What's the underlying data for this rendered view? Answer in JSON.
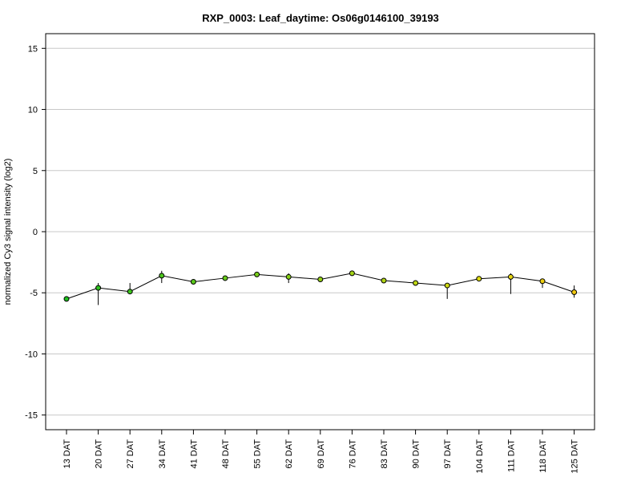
{
  "chart_data": {
    "type": "line",
    "title": "RXP_0003: Leaf_daytime: Os06g0146100_39193",
    "xlabel": "",
    "ylabel": "normalized Cy3 signal intensity (log2)",
    "ylim": [
      -16.2,
      16.2
    ],
    "yticks": [
      15,
      10,
      5,
      0,
      -5,
      -10,
      -15
    ],
    "grid": true,
    "categories": [
      "13 DAT",
      "20 DAT",
      "27 DAT",
      "34 DAT",
      "41 DAT",
      "48 DAT",
      "55 DAT",
      "62 DAT",
      "69 DAT",
      "76 DAT",
      "83 DAT",
      "90 DAT",
      "97 DAT",
      "104 DAT",
      "111 DAT",
      "118 DAT",
      "125 DAT"
    ],
    "values": [
      -5.5,
      -4.6,
      -4.9,
      -3.6,
      -4.1,
      -3.8,
      -3.5,
      -3.7,
      -3.9,
      -3.4,
      -4.0,
      -4.2,
      -4.4,
      -3.85,
      -3.7,
      -4.05,
      -4.95
    ],
    "error_low": [
      -5.6,
      -6.0,
      -5.0,
      -4.2,
      -4.2,
      -3.9,
      -3.6,
      -4.2,
      -4.0,
      -3.5,
      -4.1,
      -4.3,
      -5.5,
      -3.95,
      -5.1,
      -4.6,
      -5.4
    ],
    "error_high": [
      -5.4,
      -4.2,
      -4.2,
      -3.2,
      -4.0,
      -3.7,
      -3.4,
      -3.4,
      -3.8,
      -3.3,
      -3.9,
      -4.1,
      -4.3,
      -3.75,
      -3.4,
      -3.9,
      -4.4
    ],
    "point_colors": [
      "#1fc01f",
      "#2ec21e",
      "#3cc41d",
      "#4bc71c",
      "#5ac91b",
      "#68cb1a",
      "#77cd19",
      "#85cf18",
      "#94d117",
      "#a3d316",
      "#b1d515",
      "#c0d814",
      "#ced913",
      "#dddb12",
      "#e6d611",
      "#ecce10",
      "#f0c80f"
    ],
    "line_color": "#000000",
    "grid_color": "#c8c8c8"
  }
}
